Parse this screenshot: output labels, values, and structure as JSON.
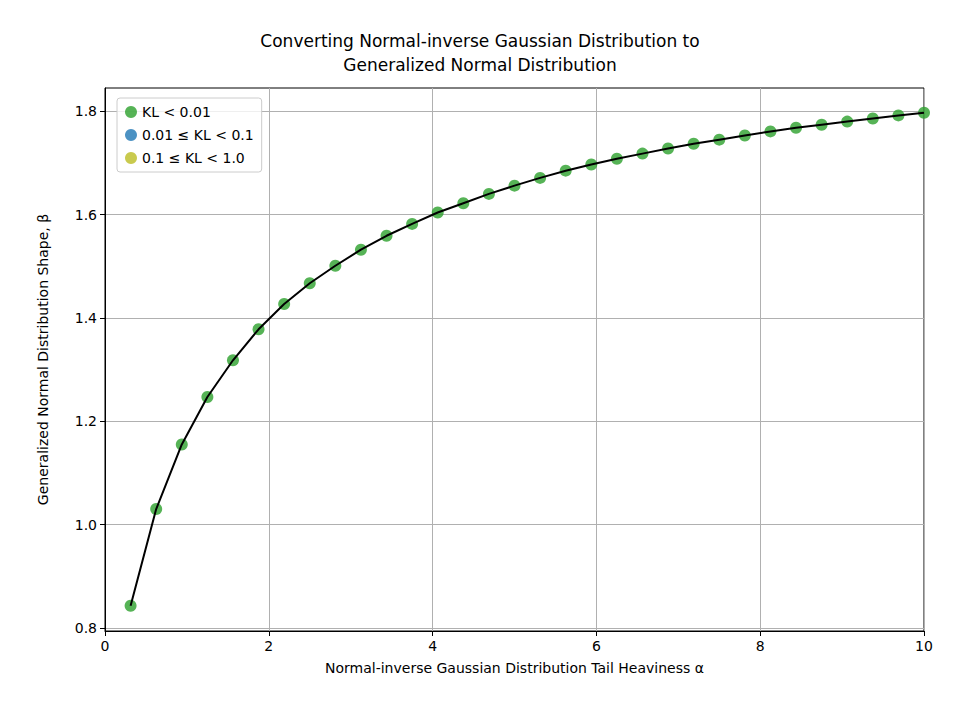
{
  "chart_data": {
    "type": "scatter",
    "title": "Converting Normal-inverse Gaussian Distribution to\nGeneralized Normal Distribution",
    "x_label": "Normal-inverse Gaussian Distribution Tail Heaviness α",
    "y_label": "Generalized Normal Distribution Shape, β",
    "xlim": [
      0,
      10
    ],
    "xticks": [
      0,
      2,
      4,
      6,
      8,
      10
    ],
    "ylim": [
      0.794,
      1.845
    ],
    "yticks": [
      0.8,
      {
        "value": 1.0,
        "label": "1.0"
      },
      1.2,
      1.4,
      1.6,
      1.8
    ],
    "grid": true,
    "legend": "upper left",
    "series": [
      {
        "type": "line",
        "color": "#000000",
        "line_style": "solid",
        "x": [
          0.3125,
          0.625,
          0.9375,
          1.25,
          1.5625,
          1.875,
          2.1875,
          2.5,
          2.8125,
          3.125,
          3.4375,
          3.75,
          4.0625,
          4.375,
          4.6875,
          5.0,
          5.3125,
          5.625,
          5.9375,
          6.25,
          6.5625,
          6.875,
          7.1875,
          7.5,
          7.8125,
          8.125,
          8.4375,
          8.75,
          9.0625,
          9.375,
          9.6875,
          10.0
        ],
        "values": [
          0.843,
          1.03,
          1.155,
          1.247,
          1.318,
          1.378,
          1.427,
          1.467,
          1.501,
          1.532,
          1.559,
          1.582,
          1.604,
          1.622,
          1.64,
          1.656,
          1.671,
          1.685,
          1.697,
          1.708,
          1.718,
          1.728,
          1.737,
          1.745,
          1.753,
          1.761,
          1.768,
          1.774,
          1.78,
          1.786,
          1.792,
          1.797
        ]
      },
      {
        "name": "KL < 0.01",
        "type": "scatter",
        "color": "#2ca02c",
        "marker": "circle",
        "x": [
          0.3125,
          0.625,
          0.9375,
          1.25,
          1.5625,
          1.875,
          2.1875,
          2.5,
          2.8125,
          3.125,
          3.4375,
          3.75,
          4.0625,
          4.375,
          4.6875,
          5.0,
          5.3125,
          5.625,
          5.9375,
          6.25,
          6.5625,
          6.875,
          7.1875,
          7.5,
          7.8125,
          8.125,
          8.4375,
          8.75,
          9.0625,
          9.375,
          9.6875,
          10.0
        ],
        "values": [
          0.843,
          1.03,
          1.155,
          1.247,
          1.318,
          1.378,
          1.427,
          1.467,
          1.501,
          1.532,
          1.559,
          1.582,
          1.604,
          1.622,
          1.64,
          1.656,
          1.671,
          1.685,
          1.697,
          1.708,
          1.718,
          1.728,
          1.737,
          1.745,
          1.753,
          1.761,
          1.768,
          1.774,
          1.78,
          1.786,
          1.792,
          1.797
        ]
      },
      {
        "name": "0.01 ≤ KL < 0.1",
        "type": "scatter",
        "color": "#1f77b4",
        "marker": "circle",
        "x": [],
        "values": []
      },
      {
        "name": "0.1 ≤ KL < 1.0",
        "type": "scatter",
        "color": "#bcbd22",
        "marker": "circle",
        "x": [],
        "values": []
      }
    ]
  }
}
